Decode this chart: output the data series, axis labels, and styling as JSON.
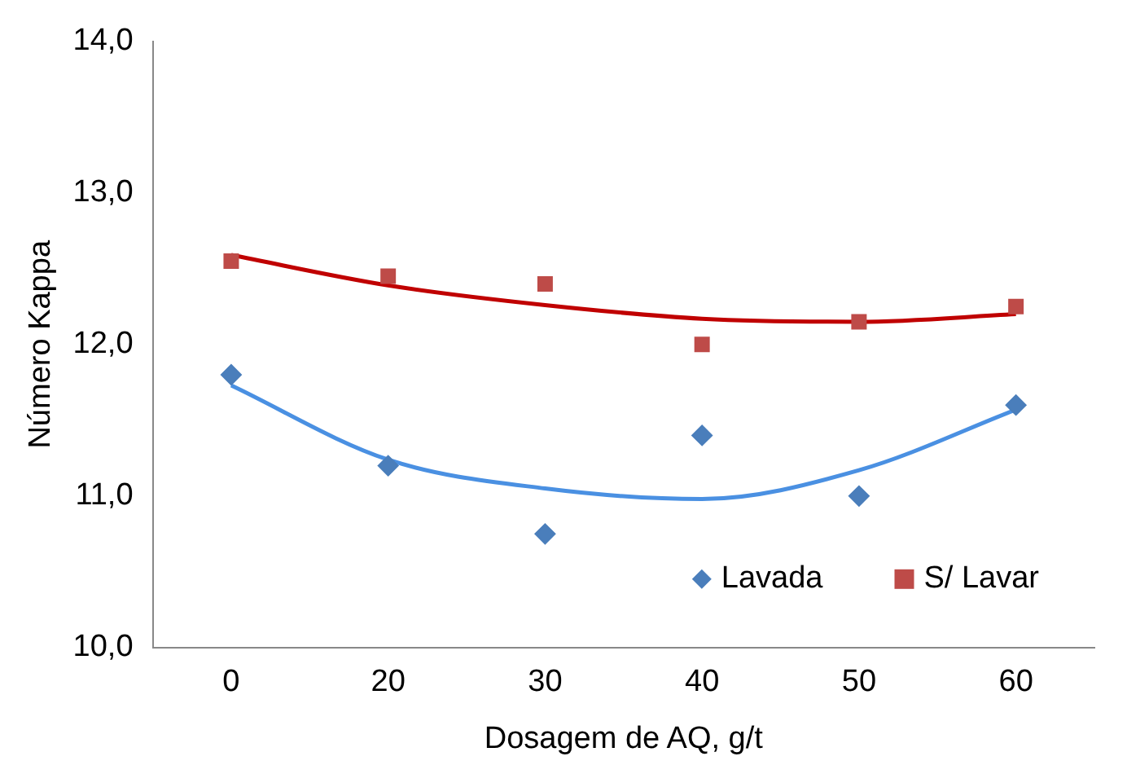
{
  "chart_data": {
    "type": "scatter",
    "xlabel": "Dosagem de AQ, g/t",
    "ylabel": "Número Kappa",
    "categories": [
      "0",
      "20",
      "30",
      "40",
      "50",
      "60"
    ],
    "series": [
      {
        "name": "Lavada",
        "color": "#4a7ebb",
        "values": [
          11.8,
          11.2,
          10.75,
          11.4,
          11.0,
          11.6
        ],
        "marker": "diamond"
      },
      {
        "name": "S/ Lavar",
        "color": "#be4b48",
        "values": [
          12.55,
          12.45,
          12.4,
          12.0,
          12.15,
          12.25
        ],
        "marker": "square"
      },
      {
        "type": "line",
        "color": "#4a90e2",
        "values": [
          11.73,
          11.24,
          11.05,
          10.98,
          11.17,
          11.57
        ]
      },
      {
        "type": "line",
        "color": "#c00000",
        "values": [
          12.59,
          12.39,
          12.26,
          12.17,
          12.15,
          12.2
        ]
      }
    ],
    "ylim": [
      10,
      14
    ],
    "yticks": [
      {
        "value": 10,
        "label": "10,0"
      },
      {
        "value": 11,
        "label": "11,0"
      },
      {
        "value": 12,
        "label": "12,0"
      },
      {
        "value": 13,
        "label": "13,0"
      },
      {
        "value": 14,
        "label": "14,0"
      }
    ],
    "grid": false,
    "legend": "bottom right"
  }
}
